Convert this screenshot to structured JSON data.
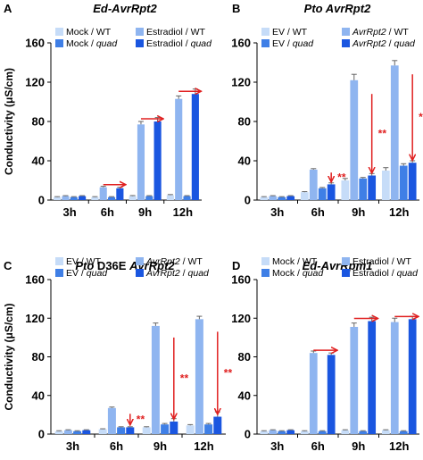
{
  "shared": {
    "ylabel": "Conductivity (μS/cm)",
    "categories": [
      "3h",
      "6h",
      "9h",
      "12h"
    ],
    "yticks": [
      0,
      40,
      80,
      120,
      160
    ],
    "colors": {
      "s1": "#c6dcf8",
      "s2": "#8fb5f0",
      "s3": "#3f7fe6",
      "s4": "#1a56e0",
      "arrow": "#e02020",
      "sig": "#e02020"
    }
  },
  "chart_data": [
    {
      "type": "bar",
      "panel": "A",
      "title": "Ed-AvrRpt2",
      "legend": [
        {
          "parts": [
            {
              "t": "Mock / WT",
              "i": false
            }
          ]
        },
        {
          "parts": [
            {
              "t": "Estradiol / WT",
              "i": false
            }
          ]
        },
        {
          "parts": [
            {
              "t": "Mock / ",
              "i": false
            },
            {
              "t": "quad",
              "i": true
            }
          ]
        },
        {
          "parts": [
            {
              "t": "Estradiol / ",
              "i": false
            },
            {
              "t": "quad",
              "i": true
            }
          ]
        }
      ],
      "categories": [
        "3h",
        "6h",
        "9h",
        "12h"
      ],
      "ylim": [
        0,
        160
      ],
      "series": [
        {
          "values": [
            3,
            3,
            4,
            5
          ],
          "errors": [
            0.5,
            0.5,
            0.6,
            0.6
          ]
        },
        {
          "values": [
            4,
            13,
            77,
            103
          ],
          "errors": [
            0.5,
            1,
            3,
            3
          ]
        },
        {
          "values": [
            3,
            3,
            4,
            4
          ],
          "errors": [
            0.5,
            0.5,
            0.5,
            0.5
          ]
        },
        {
          "values": [
            4,
            12,
            80,
            108
          ],
          "errors": [
            0.5,
            1,
            4,
            5
          ]
        }
      ],
      "annotations": [
        {
          "kind": "harrow",
          "cat": 1,
          "from": 1,
          "to": 3,
          "y": 13
        },
        {
          "kind": "harrow",
          "cat": 2,
          "from": 1,
          "to": 3,
          "y": 80
        },
        {
          "kind": "harrow",
          "cat": 3,
          "from": 1,
          "to": 3,
          "y": 108
        }
      ]
    },
    {
      "type": "bar",
      "panel": "B",
      "title": "Pto AvrRpt2",
      "legend": [
        {
          "parts": [
            {
              "t": "EV / WT",
              "i": false
            }
          ]
        },
        {
          "parts": [
            {
              "t": "AvrRpt2",
              "i": true
            },
            {
              "t": " / WT",
              "i": false
            }
          ]
        },
        {
          "parts": [
            {
              "t": "EV / ",
              "i": false
            },
            {
              "t": "quad",
              "i": true
            }
          ]
        },
        {
          "parts": [
            {
              "t": "AvrRpt2",
              "i": true
            },
            {
              "t": " / ",
              "i": false
            },
            {
              "t": "quad",
              "i": true
            }
          ]
        }
      ],
      "categories": [
        "3h",
        "6h",
        "9h",
        "12h"
      ],
      "ylim": [
        0,
        160
      ],
      "series": [
        {
          "values": [
            3,
            8,
            20,
            30
          ],
          "errors": [
            0.5,
            0.6,
            2,
            3
          ]
        },
        {
          "values": [
            4,
            31,
            122,
            137
          ],
          "errors": [
            0.5,
            1,
            6,
            5
          ]
        },
        {
          "values": [
            3,
            12,
            22,
            35
          ],
          "errors": [
            0.5,
            0.8,
            1,
            2
          ]
        },
        {
          "values": [
            4,
            16,
            25,
            38
          ],
          "errors": [
            0.5,
            1.5,
            2,
            2
          ]
        }
      ],
      "annotations": [
        {
          "kind": "varrow",
          "cat": 1,
          "bar": 3,
          "y1": 28,
          "y2": 17,
          "label": "**"
        },
        {
          "kind": "varrow",
          "cat": 2,
          "bar": 3,
          "y1": 108,
          "y2": 26,
          "label": "**"
        },
        {
          "kind": "varrow",
          "cat": 3,
          "bar": 3,
          "y1": 128,
          "y2": 39,
          "label": "**"
        }
      ]
    },
    {
      "type": "bar",
      "panel": "C",
      "title": "Pto D36E AvrRpt2",
      "titleParts": [
        {
          "t": "Pto",
          "i": true
        },
        {
          "t": " D36E ",
          "i": false
        },
        {
          "t": "AvrRpt2",
          "i": true
        }
      ],
      "legend": [
        {
          "parts": [
            {
              "t": "EV / WT",
              "i": false
            }
          ]
        },
        {
          "parts": [
            {
              "t": "AvrRpt2",
              "i": true
            },
            {
              "t": " / WT",
              "i": false
            }
          ]
        },
        {
          "parts": [
            {
              "t": "EV / ",
              "i": false
            },
            {
              "t": "quad",
              "i": true
            }
          ]
        },
        {
          "parts": [
            {
              "t": "AvrRpt2",
              "i": true
            },
            {
              "t": " / ",
              "i": false
            },
            {
              "t": "quad",
              "i": true
            }
          ]
        }
      ],
      "categories": [
        "3h",
        "6h",
        "9h",
        "12h"
      ],
      "ylim": [
        0,
        160
      ],
      "series": [
        {
          "values": [
            3,
            5,
            7,
            9
          ],
          "errors": [
            0.5,
            0.5,
            0.6,
            0.8
          ]
        },
        {
          "values": [
            4,
            27,
            112,
            119
          ],
          "errors": [
            0.5,
            1,
            3,
            3
          ]
        },
        {
          "values": [
            3,
            7,
            10,
            10
          ],
          "errors": [
            0.5,
            0.6,
            1,
            1
          ]
        },
        {
          "values": [
            4,
            7,
            13,
            18
          ],
          "errors": [
            0.5,
            0.6,
            3,
            5
          ]
        }
      ],
      "annotations": [
        {
          "kind": "varrow",
          "cat": 1,
          "bar": 3,
          "y1": 21,
          "y2": 8,
          "label": "**"
        },
        {
          "kind": "varrow",
          "cat": 2,
          "bar": 3,
          "y1": 100,
          "y2": 14,
          "label": "**"
        },
        {
          "kind": "varrow",
          "cat": 3,
          "bar": 3,
          "y1": 106,
          "y2": 19,
          "label": "**"
        }
      ]
    },
    {
      "type": "bar",
      "panel": "D",
      "title": "Ed-AvrRpm1",
      "legend": [
        {
          "parts": [
            {
              "t": "Mock / WT",
              "i": false
            }
          ]
        },
        {
          "parts": [
            {
              "t": "Estradiol / WT",
              "i": false
            }
          ]
        },
        {
          "parts": [
            {
              "t": "Mock / ",
              "i": false
            },
            {
              "t": "quad",
              "i": true
            }
          ]
        },
        {
          "parts": [
            {
              "t": "Estradiol / ",
              "i": false
            },
            {
              "t": "quad",
              "i": true
            }
          ]
        }
      ],
      "categories": [
        "3h",
        "6h",
        "9h",
        "12h"
      ],
      "ylim": [
        0,
        160
      ],
      "series": [
        {
          "values": [
            3,
            3,
            4,
            4
          ],
          "errors": [
            0.5,
            0.5,
            0.5,
            0.5
          ]
        },
        {
          "values": [
            4,
            84,
            111,
            116
          ],
          "errors": [
            0.5,
            2,
            4,
            4
          ]
        },
        {
          "values": [
            3,
            3,
            3,
            3
          ],
          "errors": [
            0.5,
            0.5,
            0.5,
            0.5
          ]
        },
        {
          "values": [
            4,
            82,
            117,
            119
          ],
          "errors": [
            0.5,
            2,
            4,
            3
          ]
        }
      ],
      "annotations": [
        {
          "kind": "harrow",
          "cat": 1,
          "from": 1,
          "to": 3,
          "y": 84
        },
        {
          "kind": "harrow",
          "cat": 2,
          "from": 1,
          "to": 3,
          "y": 117
        },
        {
          "kind": "harrow",
          "cat": 3,
          "from": 1,
          "to": 3,
          "y": 119
        }
      ]
    }
  ]
}
